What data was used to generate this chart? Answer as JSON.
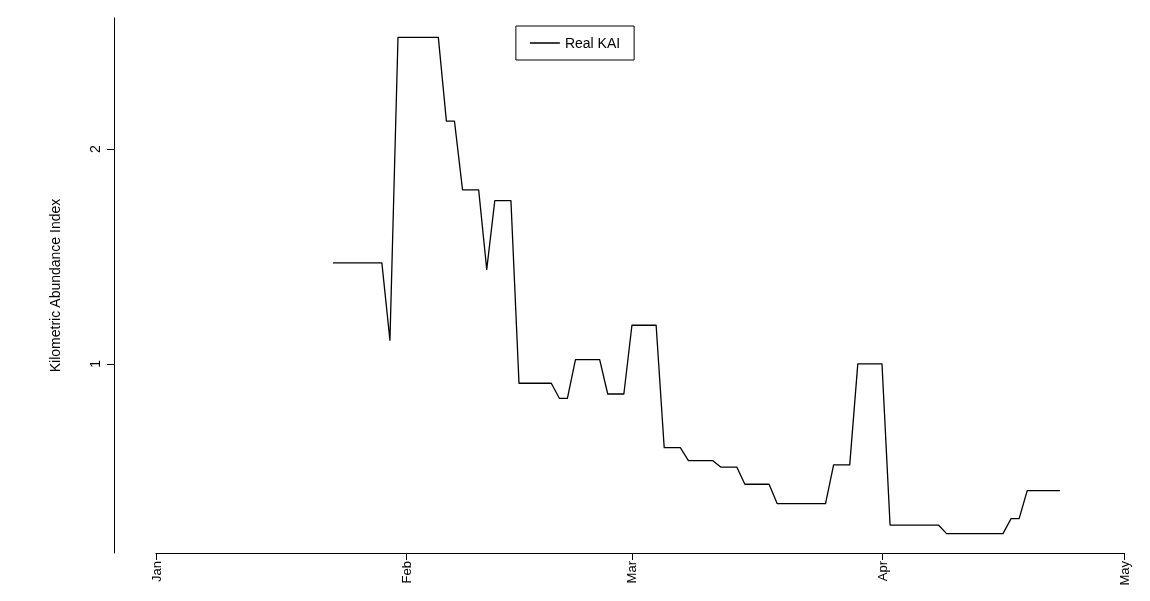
{
  "chart_data": {
    "type": "line",
    "ylabel": "Kilometric Abundance Index",
    "x": [
      "--01-23",
      "--01-29",
      "--01-30",
      "--01-31",
      "--02-05",
      "--02-06",
      "--02-07",
      "--02-08",
      "--02-10",
      "--02-11",
      "--02-12",
      "--02-14",
      "--02-15",
      "--02-19",
      "--02-20",
      "--02-21",
      "--02-22",
      "--02-25",
      "--02-26",
      "--02-28",
      "--03-01",
      "--03-04",
      "--03-05",
      "--03-07",
      "--03-08",
      "--03-11",
      "--03-12",
      "--03-14",
      "--03-15",
      "--03-18",
      "--03-19",
      "--03-25",
      "--03-26",
      "--03-28",
      "--03-29",
      "--04-01",
      "--04-02",
      "--04-08",
      "--04-09",
      "--04-16",
      "--04-17",
      "--04-18",
      "--04-19",
      "--04-23"
    ],
    "series": [
      {
        "name": "Real KAI",
        "color": "#000000",
        "values": [
          1.47,
          1.47,
          1.11,
          2.52,
          2.52,
          2.13,
          2.13,
          1.81,
          1.81,
          1.44,
          1.76,
          1.76,
          0.91,
          0.91,
          0.84,
          0.84,
          1.02,
          1.02,
          0.86,
          0.86,
          1.18,
          1.18,
          0.61,
          0.61,
          0.55,
          0.55,
          0.52,
          0.52,
          0.44,
          0.44,
          0.35,
          0.35,
          0.53,
          0.53,
          1.0,
          1.0,
          0.25,
          0.25,
          0.21,
          0.21,
          0.28,
          0.28,
          0.41,
          0.41
        ]
      }
    ],
    "xlim": [
      "--01-01",
      "--05-01"
    ],
    "xticks": [
      {
        "value": "--01-01",
        "label": "Jan"
      },
      {
        "value": "--02-01",
        "label": "Feb"
      },
      {
        "value": "--03-01",
        "label": "Mar"
      },
      {
        "value": "--04-01",
        "label": "Apr"
      },
      {
        "value": "--05-01",
        "label": "May"
      }
    ],
    "ylim": [
      0.12,
      2.61
    ],
    "yticks": [
      1,
      2
    ],
    "grid": false,
    "legend": "top",
    "marker": "none",
    "line_style": "solid"
  }
}
